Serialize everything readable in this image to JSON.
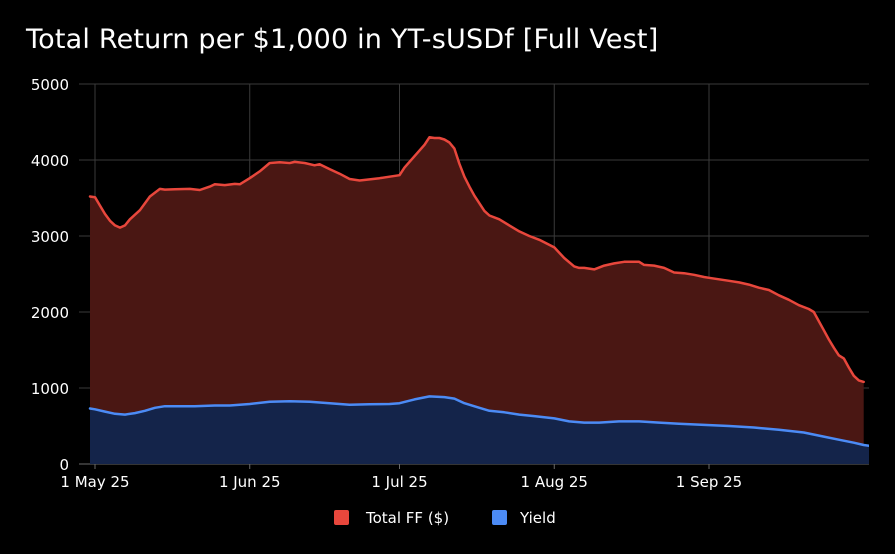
{
  "chart_data": {
    "type": "area",
    "title": "Total Return per $1,000 in YT-sUSDf [Full Vest]",
    "xlabel": "",
    "ylabel": "",
    "x_start": "2025-04-30",
    "x_end": "2025-09-30",
    "ylim": [
      0,
      5000
    ],
    "y_ticks": [
      0,
      1000,
      2000,
      3000,
      4000,
      5000
    ],
    "y_tick_labels": [
      "0",
      "1000",
      "2000",
      "3000",
      "4000",
      "5000"
    ],
    "x_ticks": [
      {
        "date": "2025-05-01",
        "label": "1 May 25"
      },
      {
        "date": "2025-06-01",
        "label": "1 Jun 25"
      },
      {
        "date": "2025-07-01",
        "label": "1 Jul 25"
      },
      {
        "date": "2025-08-01",
        "label": "1 Aug 25"
      },
      {
        "date": "2025-09-01",
        "label": "1 Sep 25"
      }
    ],
    "grid": true,
    "legend_position": "bottom",
    "series": [
      {
        "name": "Total FF ($)",
        "line_color": "#e8473c",
        "fill_color": "#4a1713",
        "points": [
          [
            "2025-04-30",
            3520
          ],
          [
            "2025-05-01",
            3510
          ],
          [
            "2025-05-02",
            3400
          ],
          [
            "2025-05-03",
            3290
          ],
          [
            "2025-05-04",
            3200
          ],
          [
            "2025-05-05",
            3140
          ],
          [
            "2025-05-06",
            3110
          ],
          [
            "2025-05-07",
            3140
          ],
          [
            "2025-05-08",
            3220
          ],
          [
            "2025-05-10",
            3340
          ],
          [
            "2025-05-12",
            3520
          ],
          [
            "2025-05-14",
            3620
          ],
          [
            "2025-05-15",
            3610
          ],
          [
            "2025-05-17",
            3615
          ],
          [
            "2025-05-20",
            3620
          ],
          [
            "2025-05-22",
            3605
          ],
          [
            "2025-05-24",
            3650
          ],
          [
            "2025-05-25",
            3680
          ],
          [
            "2025-05-27",
            3670
          ],
          [
            "2025-05-29",
            3685
          ],
          [
            "2025-05-30",
            3680
          ],
          [
            "2025-06-01",
            3760
          ],
          [
            "2025-06-03",
            3850
          ],
          [
            "2025-06-05",
            3960
          ],
          [
            "2025-06-07",
            3970
          ],
          [
            "2025-06-09",
            3960
          ],
          [
            "2025-06-10",
            3975
          ],
          [
            "2025-06-12",
            3960
          ],
          [
            "2025-06-14",
            3930
          ],
          [
            "2025-06-15",
            3945
          ],
          [
            "2025-06-17",
            3880
          ],
          [
            "2025-06-19",
            3820
          ],
          [
            "2025-06-21",
            3750
          ],
          [
            "2025-06-23",
            3730
          ],
          [
            "2025-06-25",
            3745
          ],
          [
            "2025-06-27",
            3760
          ],
          [
            "2025-06-29",
            3780
          ],
          [
            "2025-07-01",
            3800
          ],
          [
            "2025-07-02",
            3900
          ],
          [
            "2025-07-04",
            4050
          ],
          [
            "2025-07-06",
            4200
          ],
          [
            "2025-07-07",
            4300
          ],
          [
            "2025-07-08",
            4290
          ],
          [
            "2025-07-09",
            4290
          ],
          [
            "2025-07-10",
            4270
          ],
          [
            "2025-07-11",
            4230
          ],
          [
            "2025-07-12",
            4150
          ],
          [
            "2025-07-13",
            3950
          ],
          [
            "2025-07-14",
            3780
          ],
          [
            "2025-07-15",
            3650
          ],
          [
            "2025-07-16",
            3530
          ],
          [
            "2025-07-17",
            3430
          ],
          [
            "2025-07-18",
            3330
          ],
          [
            "2025-07-19",
            3270
          ],
          [
            "2025-07-21",
            3220
          ],
          [
            "2025-07-23",
            3140
          ],
          [
            "2025-07-25",
            3060
          ],
          [
            "2025-07-27",
            3000
          ],
          [
            "2025-07-29",
            2950
          ],
          [
            "2025-08-01",
            2850
          ],
          [
            "2025-08-03",
            2710
          ],
          [
            "2025-08-05",
            2600
          ],
          [
            "2025-08-06",
            2580
          ],
          [
            "2025-08-07",
            2580
          ],
          [
            "2025-08-09",
            2560
          ],
          [
            "2025-08-11",
            2610
          ],
          [
            "2025-08-13",
            2640
          ],
          [
            "2025-08-15",
            2660
          ],
          [
            "2025-08-18",
            2660
          ],
          [
            "2025-08-19",
            2620
          ],
          [
            "2025-08-21",
            2610
          ],
          [
            "2025-08-23",
            2580
          ],
          [
            "2025-08-25",
            2520
          ],
          [
            "2025-08-27",
            2510
          ],
          [
            "2025-08-29",
            2490
          ],
          [
            "2025-08-31",
            2460
          ],
          [
            "2025-09-01",
            2450
          ],
          [
            "2025-09-03",
            2430
          ],
          [
            "2025-09-05",
            2410
          ],
          [
            "2025-09-07",
            2390
          ],
          [
            "2025-09-09",
            2360
          ],
          [
            "2025-09-11",
            2320
          ],
          [
            "2025-09-13",
            2290
          ],
          [
            "2025-09-15",
            2220
          ],
          [
            "2025-09-17",
            2160
          ],
          [
            "2025-09-19",
            2090
          ],
          [
            "2025-09-21",
            2040
          ],
          [
            "2025-09-22",
            2000
          ],
          [
            "2025-09-23",
            1880
          ],
          [
            "2025-09-24",
            1760
          ],
          [
            "2025-09-25",
            1640
          ],
          [
            "2025-09-26",
            1530
          ],
          [
            "2025-09-27",
            1430
          ],
          [
            "2025-09-28",
            1390
          ],
          [
            "2025-09-29",
            1270
          ],
          [
            "2025-09-30",
            1160
          ],
          [
            "2025-10-01",
            1100
          ],
          [
            "2025-10-02",
            1080
          ]
        ]
      },
      {
        "name": "Yield",
        "line_color": "#4c8bf5",
        "fill_color": "#14244a",
        "points": [
          [
            "2025-04-30",
            730
          ],
          [
            "2025-05-01",
            720
          ],
          [
            "2025-05-03",
            690
          ],
          [
            "2025-05-05",
            660
          ],
          [
            "2025-05-07",
            650
          ],
          [
            "2025-05-09",
            670
          ],
          [
            "2025-05-11",
            700
          ],
          [
            "2025-05-13",
            740
          ],
          [
            "2025-05-15",
            760
          ],
          [
            "2025-05-18",
            760
          ],
          [
            "2025-05-21",
            760
          ],
          [
            "2025-05-25",
            770
          ],
          [
            "2025-05-28",
            770
          ],
          [
            "2025-06-01",
            790
          ],
          [
            "2025-06-05",
            820
          ],
          [
            "2025-06-09",
            825
          ],
          [
            "2025-06-13",
            820
          ],
          [
            "2025-06-17",
            800
          ],
          [
            "2025-06-21",
            780
          ],
          [
            "2025-06-25",
            785
          ],
          [
            "2025-06-29",
            790
          ],
          [
            "2025-07-01",
            800
          ],
          [
            "2025-07-04",
            850
          ],
          [
            "2025-07-07",
            890
          ],
          [
            "2025-07-10",
            880
          ],
          [
            "2025-07-12",
            860
          ],
          [
            "2025-07-14",
            800
          ],
          [
            "2025-07-17",
            740
          ],
          [
            "2025-07-19",
            700
          ],
          [
            "2025-07-22",
            680
          ],
          [
            "2025-07-25",
            650
          ],
          [
            "2025-07-28",
            630
          ],
          [
            "2025-08-01",
            600
          ],
          [
            "2025-08-04",
            560
          ],
          [
            "2025-08-07",
            545
          ],
          [
            "2025-08-10",
            545
          ],
          [
            "2025-08-14",
            560
          ],
          [
            "2025-08-18",
            560
          ],
          [
            "2025-08-22",
            545
          ],
          [
            "2025-08-26",
            530
          ],
          [
            "2025-08-31",
            515
          ],
          [
            "2025-09-05",
            500
          ],
          [
            "2025-09-10",
            480
          ],
          [
            "2025-09-15",
            450
          ],
          [
            "2025-09-20",
            415
          ],
          [
            "2025-09-24",
            360
          ],
          [
            "2025-09-27",
            320
          ],
          [
            "2025-09-30",
            280
          ],
          [
            "2025-10-02",
            250
          ],
          [
            "2025-10-04",
            230
          ]
        ]
      }
    ]
  }
}
